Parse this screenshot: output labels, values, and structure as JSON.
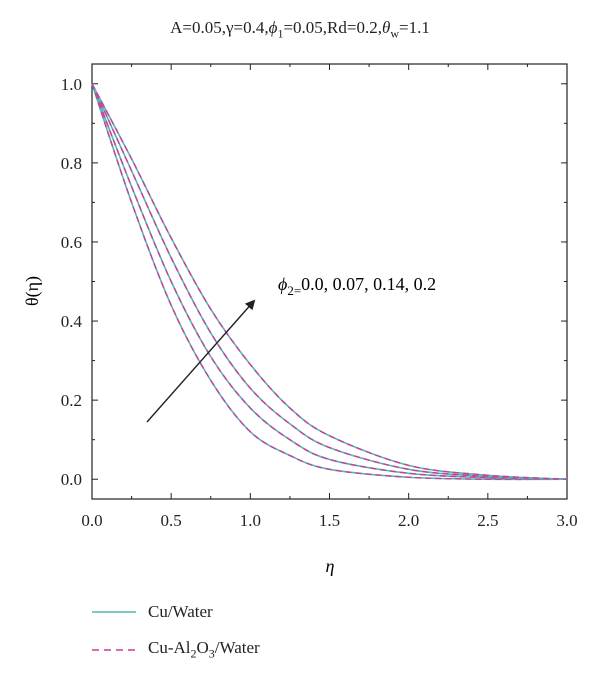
{
  "chart_data": {
    "type": "line",
    "title": {
      "prefix": "A=0.05,γ=0.4,",
      "phi": "ϕ",
      "phi_sub": "1",
      "middle": "=0.05,Rd=0.2,",
      "theta": "θ",
      "theta_sub": "w",
      "suffix": "=1.1"
    },
    "xlabel": "η",
    "ylabel": "θ(η)",
    "xlim": [
      0,
      3.0
    ],
    "ylim": [
      -0.05,
      1.05
    ],
    "xticks": [
      0.0,
      0.5,
      1.0,
      1.5,
      2.0,
      2.5,
      3.0
    ],
    "xtick_labels": [
      "0.0",
      "0.5",
      "1.0",
      "1.5",
      "2.0",
      "2.5",
      "3.0"
    ],
    "yticks": [
      0.0,
      0.2,
      0.4,
      0.6,
      0.8,
      1.0
    ],
    "ytick_labels": [
      "0.0",
      "0.2",
      "0.4",
      "0.6",
      "0.8",
      "1.0"
    ],
    "annotation": {
      "phi": "ϕ",
      "sub": "2=",
      "values": "0.0, 0.07, 0.14, 0.2"
    },
    "legend": {
      "items": [
        {
          "label_main": "Cu/Water",
          "sub_parts": []
        },
        {
          "label_main": "Cu-Al",
          "sub_parts": [
            "2",
            "O",
            "3",
            "/Water"
          ]
        }
      ]
    },
    "colors": {
      "solid": "#55b7b0",
      "dashed": "#cc3c9b",
      "axis": "#222222"
    },
    "series": [
      {
        "x": [
          0,
          0.25,
          0.5,
          0.75,
          1.0,
          1.25,
          1.5,
          2.0,
          2.5,
          3.0
        ],
        "y": [
          1.0,
          0.7,
          0.44,
          0.25,
          0.12,
          0.06,
          0.025,
          0.005,
          0.0,
          0.0
        ]
      },
      {
        "x": [
          0,
          0.25,
          0.5,
          0.75,
          1.0,
          1.25,
          1.5,
          2.0,
          2.5,
          3.0
        ],
        "y": [
          1.0,
          0.74,
          0.5,
          0.31,
          0.18,
          0.1,
          0.05,
          0.015,
          0.004,
          0.0
        ]
      },
      {
        "x": [
          0,
          0.25,
          0.5,
          0.75,
          1.0,
          1.25,
          1.5,
          2.0,
          2.5,
          3.0
        ],
        "y": [
          1.0,
          0.78,
          0.56,
          0.37,
          0.23,
          0.14,
          0.08,
          0.025,
          0.007,
          0.0
        ]
      },
      {
        "x": [
          0,
          0.25,
          0.5,
          0.75,
          1.0,
          1.25,
          1.5,
          2.0,
          2.5,
          3.0
        ],
        "y": [
          1.0,
          0.81,
          0.61,
          0.43,
          0.29,
          0.18,
          0.11,
          0.035,
          0.01,
          0.0
        ]
      }
    ]
  }
}
